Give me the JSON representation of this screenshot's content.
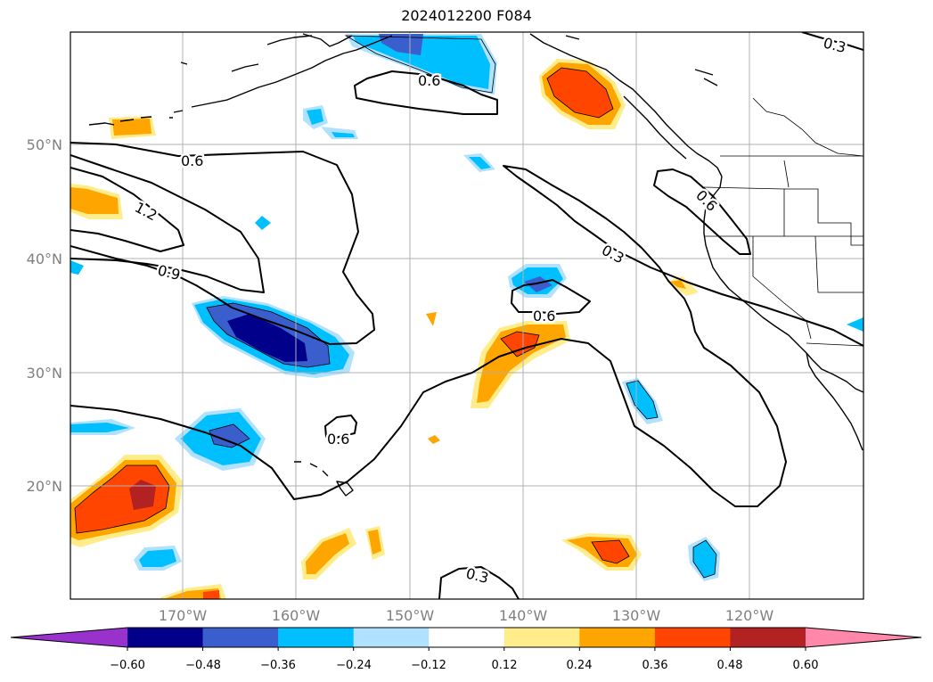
{
  "title": "2024012200 F084",
  "map": {
    "lat_labels": [
      "50°N",
      "40°N",
      "30°N",
      "20°N"
    ],
    "lon_labels": [
      "170°W",
      "160°W",
      "150°W",
      "140°W",
      "130°W",
      "120°W"
    ],
    "contour_labels": [
      "0.6",
      "1.2",
      "0.9",
      "0.6",
      "0.3",
      "0.6",
      "0.6",
      "0.3",
      "0.3",
      "0.6"
    ],
    "background_color": "#ffffff",
    "coast_color": "#000000",
    "grid_color": "#b0b0b0"
  },
  "colorbar": {
    "ticks": [
      "−0.60",
      "−0.48",
      "−0.36",
      "−0.24",
      "−0.12",
      "0.12",
      "0.24",
      "0.36",
      "0.48",
      "0.60"
    ],
    "colors": [
      "#9932cc",
      "#00008b",
      "#3a5fcd",
      "#00bfff",
      "#b0e2ff",
      "#ffffff",
      "#ffec8b",
      "#ffa500",
      "#ff4500",
      "#b22222",
      "#ff88aa"
    ]
  }
}
